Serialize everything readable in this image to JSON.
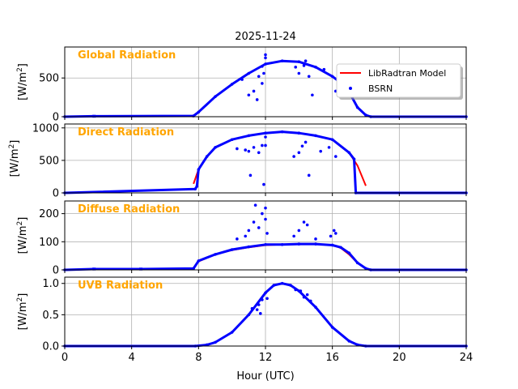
{
  "title": "2025-11-24",
  "xlabel": "Hour (UTC)",
  "x_ticks": [
    0,
    4,
    8,
    12,
    16,
    20,
    24
  ],
  "legend": {
    "model_label": "LibRadtran Model",
    "obs_label": "BSRN",
    "placement": "upper-right"
  },
  "colors": {
    "model": "#ff0000",
    "obs": "#0000ff",
    "panel_title": "#ffa500",
    "grid": "#b0b0b0"
  },
  "chart_data": [
    {
      "type": "line",
      "name": "Global Radiation",
      "ylabel": "[W/m²]",
      "xlim": [
        0,
        24
      ],
      "ylim": [
        0,
        900
      ],
      "yticks": [
        0,
        500
      ],
      "show_legend": true,
      "series": [
        {
          "name": "LibRadtran Model",
          "x": [
            7.6,
            8,
            9,
            10,
            11,
            12,
            13,
            14,
            15,
            16,
            16.5,
            17,
            17.5,
            18,
            18.3
          ],
          "y": [
            0,
            60,
            260,
            420,
            560,
            680,
            720,
            710,
            640,
            520,
            440,
            320,
            120,
            20,
            0
          ]
        },
        {
          "name": "BSRN",
          "x": [
            0,
            1.7,
            1.8,
            7.7,
            8,
            9,
            10,
            11,
            12,
            13,
            14,
            15,
            16,
            16.5,
            17,
            17.5,
            18,
            18.3,
            24
          ],
          "y": [
            0,
            6,
            6,
            10,
            60,
            260,
            420,
            560,
            680,
            720,
            710,
            640,
            520,
            440,
            320,
            120,
            20,
            0,
            0
          ]
        }
      ],
      "outliers": [
        [
          10.6,
          480
        ],
        [
          11.0,
          280
        ],
        [
          11.3,
          330
        ],
        [
          11.5,
          220
        ],
        [
          11.6,
          520
        ],
        [
          11.8,
          430
        ],
        [
          11.9,
          560
        ],
        [
          12.0,
          800
        ],
        [
          12.0,
          760
        ],
        [
          11.8,
          650
        ],
        [
          13.8,
          640
        ],
        [
          14.0,
          560
        ],
        [
          14.3,
          660
        ],
        [
          14.4,
          720
        ],
        [
          14.6,
          520
        ],
        [
          14.8,
          280
        ],
        [
          15.5,
          610
        ],
        [
          16.2,
          330
        ]
      ]
    },
    {
      "type": "line",
      "name": "Direct Radiation",
      "ylabel": "[W/m²]",
      "xlim": [
        0,
        24
      ],
      "ylim": [
        0,
        1060
      ],
      "yticks": [
        0,
        500,
        1000
      ],
      "show_legend": false,
      "series": [
        {
          "name": "LibRadtran Model",
          "x": [
            7.7,
            8,
            8.5,
            9,
            10,
            11,
            12,
            13,
            14,
            15,
            16,
            17,
            17.5,
            18
          ],
          "y": [
            140,
            360,
            560,
            700,
            820,
            880,
            920,
            940,
            920,
            880,
            820,
            620,
            420,
            110
          ]
        },
        {
          "name": "BSRN",
          "x": [
            0,
            7.8,
            7.9,
            8,
            8.5,
            9,
            10,
            11,
            12,
            13,
            14,
            15,
            16,
            17,
            17.3,
            17.4,
            24
          ],
          "y": [
            0,
            60,
            100,
            360,
            560,
            700,
            820,
            880,
            920,
            940,
            920,
            880,
            820,
            620,
            520,
            0,
            0
          ]
        }
      ],
      "outliers": [
        [
          10.3,
          680
        ],
        [
          10.8,
          660
        ],
        [
          11.0,
          640
        ],
        [
          11.1,
          270
        ],
        [
          11.3,
          700
        ],
        [
          11.6,
          620
        ],
        [
          11.8,
          730
        ],
        [
          11.9,
          130
        ],
        [
          12.0,
          860
        ],
        [
          12.0,
          730
        ],
        [
          13.7,
          560
        ],
        [
          14.0,
          620
        ],
        [
          14.2,
          720
        ],
        [
          14.4,
          780
        ],
        [
          14.6,
          270
        ],
        [
          15.3,
          640
        ],
        [
          15.8,
          700
        ],
        [
          16.2,
          560
        ]
      ]
    },
    {
      "type": "line",
      "name": "Diffuse Radiation",
      "ylabel": "[W/m²]",
      "xlim": [
        0,
        24
      ],
      "ylim": [
        0,
        245
      ],
      "yticks": [
        0,
        100,
        200
      ],
      "show_legend": false,
      "series": [
        {
          "name": "LibRadtran Model",
          "x": [
            7.6,
            8,
            9,
            10,
            11,
            12,
            13,
            14,
            15,
            16,
            16.5,
            17,
            17.5,
            18,
            18.3
          ],
          "y": [
            0,
            30,
            55,
            70,
            80,
            88,
            90,
            92,
            92,
            88,
            78,
            55,
            25,
            5,
            0
          ]
        },
        {
          "name": "BSRN",
          "x": [
            0,
            1.7,
            1.8,
            4.5,
            4.6,
            7.7,
            8,
            9,
            10,
            11,
            12,
            13,
            14,
            15,
            16,
            16.5,
            17,
            17.5,
            18,
            18.3,
            24
          ],
          "y": [
            0,
            3,
            3,
            3,
            3,
            5,
            32,
            55,
            72,
            82,
            90,
            90,
            92,
            92,
            88,
            80,
            60,
            25,
            5,
            0,
            0
          ]
        }
      ],
      "outliers": [
        [
          10.3,
          110
        ],
        [
          10.8,
          120
        ],
        [
          11.0,
          140
        ],
        [
          11.3,
          170
        ],
        [
          11.4,
          230
        ],
        [
          11.6,
          150
        ],
        [
          11.8,
          200
        ],
        [
          12.0,
          220
        ],
        [
          12.0,
          180
        ],
        [
          12.1,
          130
        ],
        [
          13.7,
          120
        ],
        [
          14.0,
          140
        ],
        [
          14.3,
          170
        ],
        [
          14.5,
          160
        ],
        [
          15.0,
          110
        ],
        [
          15.9,
          120
        ],
        [
          16.1,
          140
        ],
        [
          16.2,
          130
        ]
      ]
    },
    {
      "type": "line",
      "name": "UVB Radiation",
      "ylabel": "[W/m²]",
      "xlim": [
        0,
        24
      ],
      "ylim": [
        0,
        1.1
      ],
      "yticks": [
        0.0,
        0.5,
        1.0
      ],
      "show_legend": false,
      "series": [
        {
          "name": "LibRadtran Model",
          "x": [
            7.8,
            8.5,
            9,
            10,
            11,
            12,
            12.5,
            13,
            13.5,
            14,
            15,
            16,
            17,
            17.5,
            18
          ],
          "y": [
            0,
            0.02,
            0.06,
            0.22,
            0.5,
            0.85,
            0.97,
            1.0,
            0.97,
            0.88,
            0.62,
            0.3,
            0.08,
            0.02,
            0
          ]
        },
        {
          "name": "BSRN",
          "x": [
            0,
            7.8,
            8.5,
            9,
            10,
            11,
            12,
            12.5,
            13,
            13.5,
            14,
            15,
            16,
            17,
            17.5,
            18,
            24
          ],
          "y": [
            0,
            0,
            0.02,
            0.06,
            0.22,
            0.5,
            0.85,
            0.97,
            1.0,
            0.97,
            0.88,
            0.62,
            0.3,
            0.08,
            0.02,
            0,
            0
          ]
        }
      ],
      "outliers": [
        [
          11.2,
          0.6
        ],
        [
          11.5,
          0.58
        ],
        [
          11.6,
          0.66
        ],
        [
          11.7,
          0.52
        ],
        [
          11.8,
          0.74
        ],
        [
          12.1,
          0.76
        ],
        [
          13.8,
          0.9
        ],
        [
          14.1,
          0.88
        ],
        [
          14.3,
          0.78
        ],
        [
          14.5,
          0.82
        ],
        [
          14.7,
          0.72
        ]
      ]
    }
  ]
}
